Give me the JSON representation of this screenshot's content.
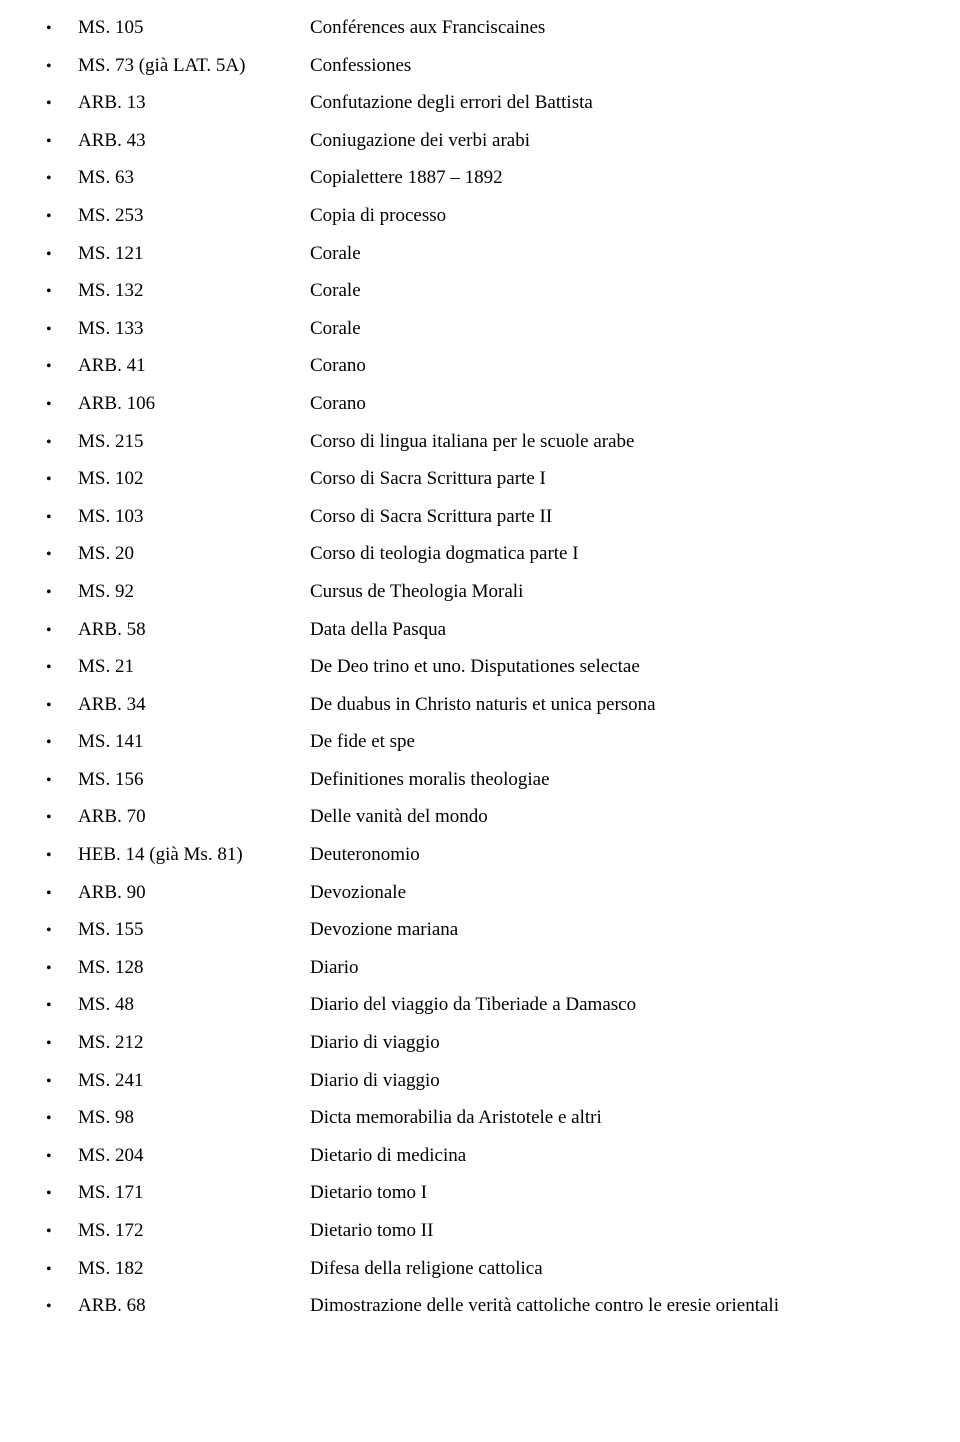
{
  "rows": [
    {
      "code": "MS. 105",
      "title": "Conférences aux Franciscaines"
    },
    {
      "code": "MS. 73 (già LAT. 5A)",
      "title": "Confessiones"
    },
    {
      "code": "ARB. 13",
      "title": "Confutazione degli errori del Battista"
    },
    {
      "code": "ARB. 43",
      "title": "Coniugazione dei verbi arabi"
    },
    {
      "code": "MS. 63",
      "title": "Copialettere 1887 – 1892"
    },
    {
      "code": "MS. 253",
      "title": "Copia di processo"
    },
    {
      "code": "MS. 121",
      "title": "Corale"
    },
    {
      "code": "MS. 132",
      "title": "Corale"
    },
    {
      "code": "MS. 133",
      "title": "Corale"
    },
    {
      "code": "ARB. 41",
      "title": "Corano"
    },
    {
      "code": "ARB. 106",
      "title": "Corano"
    },
    {
      "code": "MS. 215",
      "title": "Corso di lingua italiana per le scuole arabe"
    },
    {
      "code": "MS. 102",
      "title": "Corso di Sacra Scrittura parte I"
    },
    {
      "code": "MS. 103",
      "title": "Corso di Sacra Scrittura parte II"
    },
    {
      "code": "MS. 20",
      "title": "Corso di teologia dogmatica parte I"
    },
    {
      "code": "MS. 92",
      "title": "Cursus de Theologia Morali"
    },
    {
      "code": "ARB. 58",
      "title": "Data della Pasqua"
    },
    {
      "code": "MS. 21",
      "title": "De Deo trino et uno. Disputationes selectae"
    },
    {
      "code": "ARB. 34",
      "title": "De duabus in Christo naturis et unica persona"
    },
    {
      "code": "MS. 141",
      "title": "De fide et spe"
    },
    {
      "code": "MS. 156",
      "title": "Definitiones moralis theologiae"
    },
    {
      "code": "ARB. 70",
      "title": "Delle vanità del mondo"
    },
    {
      "code": "HEB. 14 (già Ms. 81)",
      "title": "Deuteronomio"
    },
    {
      "code": "ARB. 90",
      "title": "Devozionale"
    },
    {
      "code": "MS. 155",
      "title": "Devozione mariana"
    },
    {
      "code": "MS. 128",
      "title": "Diario"
    },
    {
      "code": "MS. 48",
      "title": "Diario del viaggio da Tiberiade a Damasco"
    },
    {
      "code": "MS. 212",
      "title": "Diario di viaggio"
    },
    {
      "code": "MS. 241",
      "title": "Diario di viaggio"
    },
    {
      "code": "MS. 98",
      "title": "Dicta memorabilia da Aristotele e altri"
    },
    {
      "code": "MS. 204",
      "title": "Dietario di medicina"
    },
    {
      "code": "MS. 171",
      "title": "Dietario tomo I"
    },
    {
      "code": "MS. 172",
      "title": "Dietario tomo II"
    },
    {
      "code": "MS. 182",
      "title": "Difesa della religione cattolica"
    },
    {
      "code": "ARB. 68",
      "title": "Dimostrazione delle verità cattoliche contro le eresie orientali"
    }
  ]
}
